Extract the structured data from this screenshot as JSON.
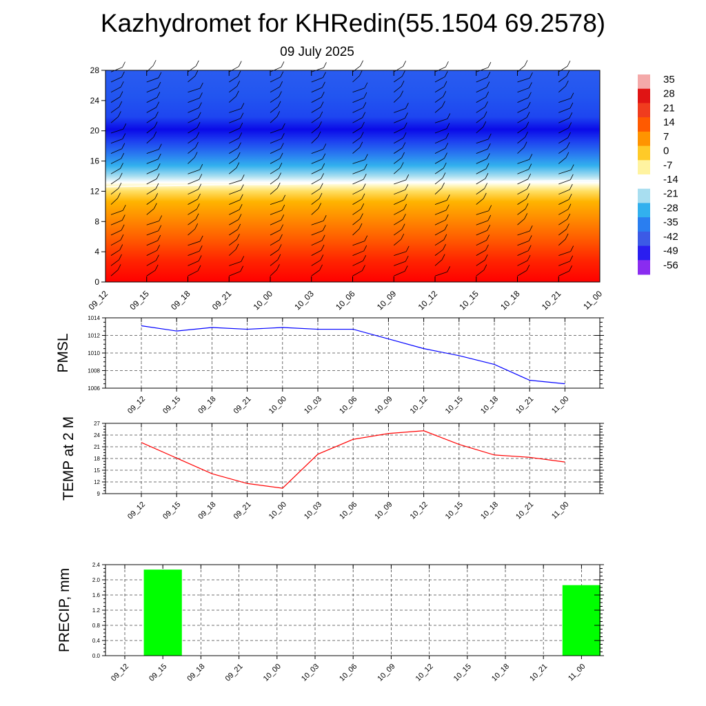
{
  "page": {
    "title": "Kazhydromet for KHRedin(55.1504 69.2578)",
    "subtitle": "09 July 2025"
  },
  "colorbar": {
    "labels": [
      "35",
      "28",
      "21",
      "14",
      "7",
      "0",
      "-7",
      "-14",
      "-21",
      "-28",
      "-35",
      "-42",
      "-49",
      "-56"
    ],
    "colors": [
      "#f4a9a9",
      "#e01414",
      "#f03c1e",
      "#ff5a00",
      "#ff9400",
      "#ffca28",
      "#fff3a0",
      "#ffffff",
      "#a8def0",
      "#32b0ee",
      "#2a7ef0",
      "#3c5ae6",
      "#2a1ef0",
      "#8a2cf0"
    ]
  },
  "chart_data": [
    {
      "type": "heatmap",
      "title": "",
      "xlabel": "",
      "ylabel": "",
      "x_categories": [
        "09_12",
        "09_15",
        "09_18",
        "09_21",
        "10_00",
        "10_03",
        "10_06",
        "10_09",
        "10_12",
        "10_15",
        "10_18",
        "10_21",
        "11_00"
      ],
      "y_ticks": [
        "0",
        "4",
        "8",
        "12",
        "16",
        "20",
        "24",
        "28"
      ],
      "ylim": [
        0,
        28
      ],
      "value_range": [
        -56,
        35
      ],
      "freezing_level": [
        12.6,
        12.7,
        12.8,
        12.9,
        12.9,
        13.0,
        13.1,
        13.2,
        13.2,
        13.3,
        13.3,
        13.4,
        13.4
      ],
      "wind_barbs": true
    },
    {
      "type": "line",
      "ylabel": "PMSL",
      "categories": [
        "09_12",
        "09_15",
        "09_18",
        "09_21",
        "10_00",
        "10_03",
        "10_06",
        "10_09",
        "10_12",
        "10_15",
        "10_18",
        "10_21",
        "11_00"
      ],
      "series": [
        {
          "color": "#0000ff",
          "values": [
            1013.1,
            1012.5,
            1012.9,
            1012.7,
            1012.9,
            1012.7,
            1012.7,
            1011.6,
            1010.5,
            1009.7,
            1008.7,
            1006.9,
            1006.5
          ]
        }
      ],
      "ylim": [
        1006,
        1014
      ],
      "y_ticks": [
        "1006",
        "1008",
        "1010",
        "1012",
        "1014"
      ],
      "grid": true
    },
    {
      "type": "line",
      "ylabel": "TEMP at 2 M",
      "categories": [
        "09_12",
        "09_15",
        "09_18",
        "09_21",
        "10_00",
        "10_03",
        "10_06",
        "10_09",
        "10_12",
        "10_15",
        "10_18",
        "10_21",
        "11_00"
      ],
      "series": [
        {
          "color": "#ff0000",
          "values": [
            22.1,
            18.1,
            14.1,
            11.6,
            10.4,
            19.1,
            22.9,
            24.4,
            25.1,
            21.6,
            18.9,
            18.3,
            17.1
          ]
        }
      ],
      "ylim": [
        9,
        27
      ],
      "y_ticks": [
        "9",
        "12",
        "15",
        "18",
        "21",
        "24",
        "27"
      ],
      "grid": true
    },
    {
      "type": "bar",
      "ylabel": "PRECIP, mm",
      "categories": [
        "09_12",
        "09_15",
        "09_18",
        "09_21",
        "10_00",
        "10_03",
        "10_06",
        "10_09",
        "10_12",
        "10_15",
        "10_18",
        "10_21",
        "11_00"
      ],
      "series": [
        {
          "color": "#00ff00",
          "values": [
            0,
            2.27,
            0,
            0,
            0,
            0,
            0,
            0,
            0,
            0,
            0,
            0,
            1.86
          ]
        }
      ],
      "ylim": [
        0,
        2.4
      ],
      "y_ticks": [
        "0.0",
        "0.4",
        "0.8",
        "1.2",
        "1.6",
        "2.0",
        "2.4"
      ],
      "grid": true
    }
  ]
}
